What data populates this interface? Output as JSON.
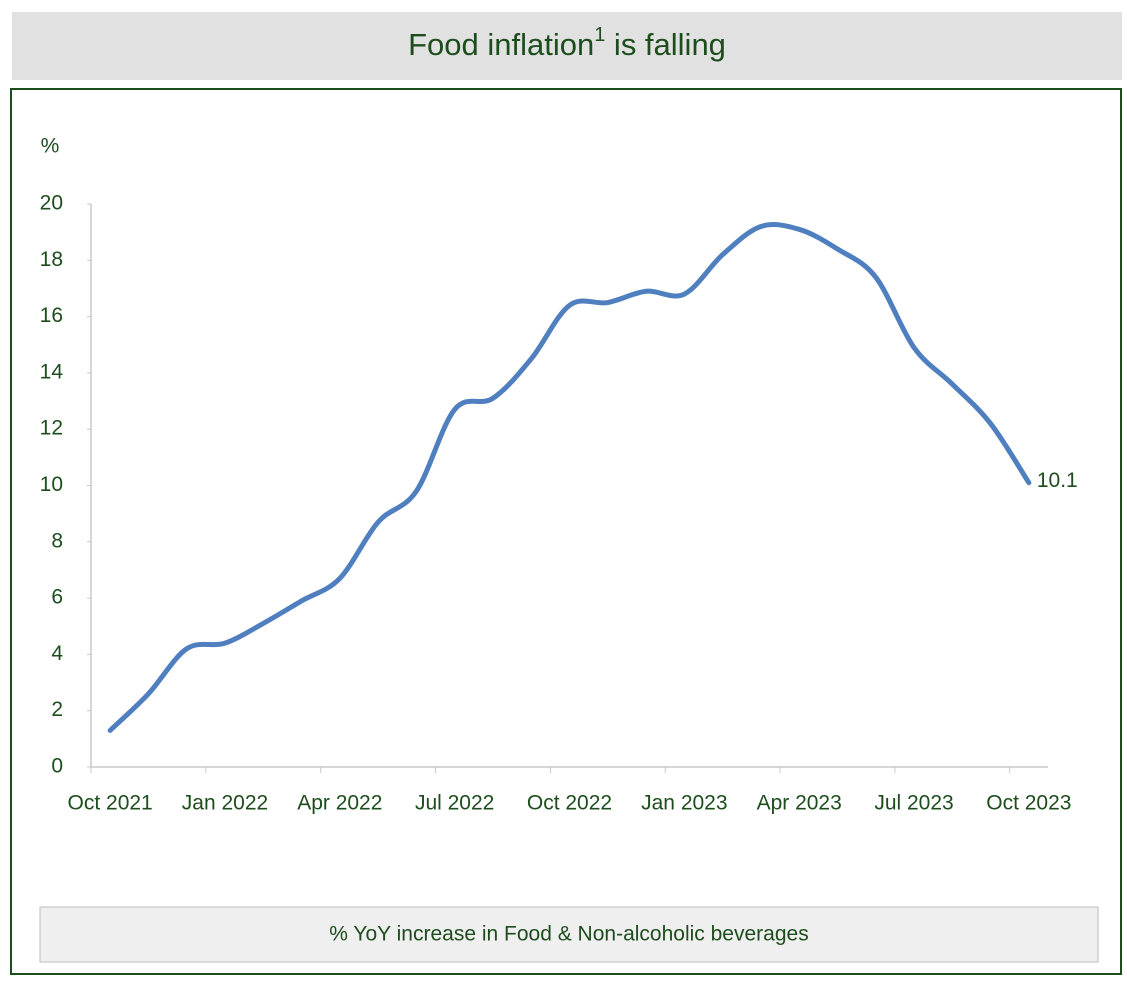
{
  "chart_data": {
    "type": "line",
    "title_parts": [
      "Food inflation",
      "1",
      " is falling"
    ],
    "y_label": "%",
    "caption": "% YoY increase in Food & Non-alcoholic beverages",
    "categories": [
      "Oct 2021",
      null,
      null,
      "Jan 2022",
      null,
      null,
      "Apr 2022",
      null,
      null,
      "Jul 2022",
      null,
      null,
      "Oct 2022",
      null,
      null,
      "Jan 2023",
      null,
      null,
      "Apr 2023",
      null,
      null,
      "Jul 2023",
      null,
      null,
      "Oct 2023"
    ],
    "values": [
      1.3,
      2.6,
      4.2,
      4.4,
      5.1,
      5.9,
      6.7,
      8.7,
      9.8,
      12.7,
      13.1,
      14.5,
      16.4,
      16.5,
      16.9,
      16.8,
      18.2,
      19.2,
      19.1,
      18.4,
      17.4,
      14.9,
      13.6,
      12.2,
      10.1
    ],
    "color": "#4f7fbf",
    "ylim": [
      0,
      20
    ],
    "yticks": [
      0,
      2,
      4,
      6,
      8,
      10,
      12,
      14,
      16,
      18,
      20
    ]
  }
}
